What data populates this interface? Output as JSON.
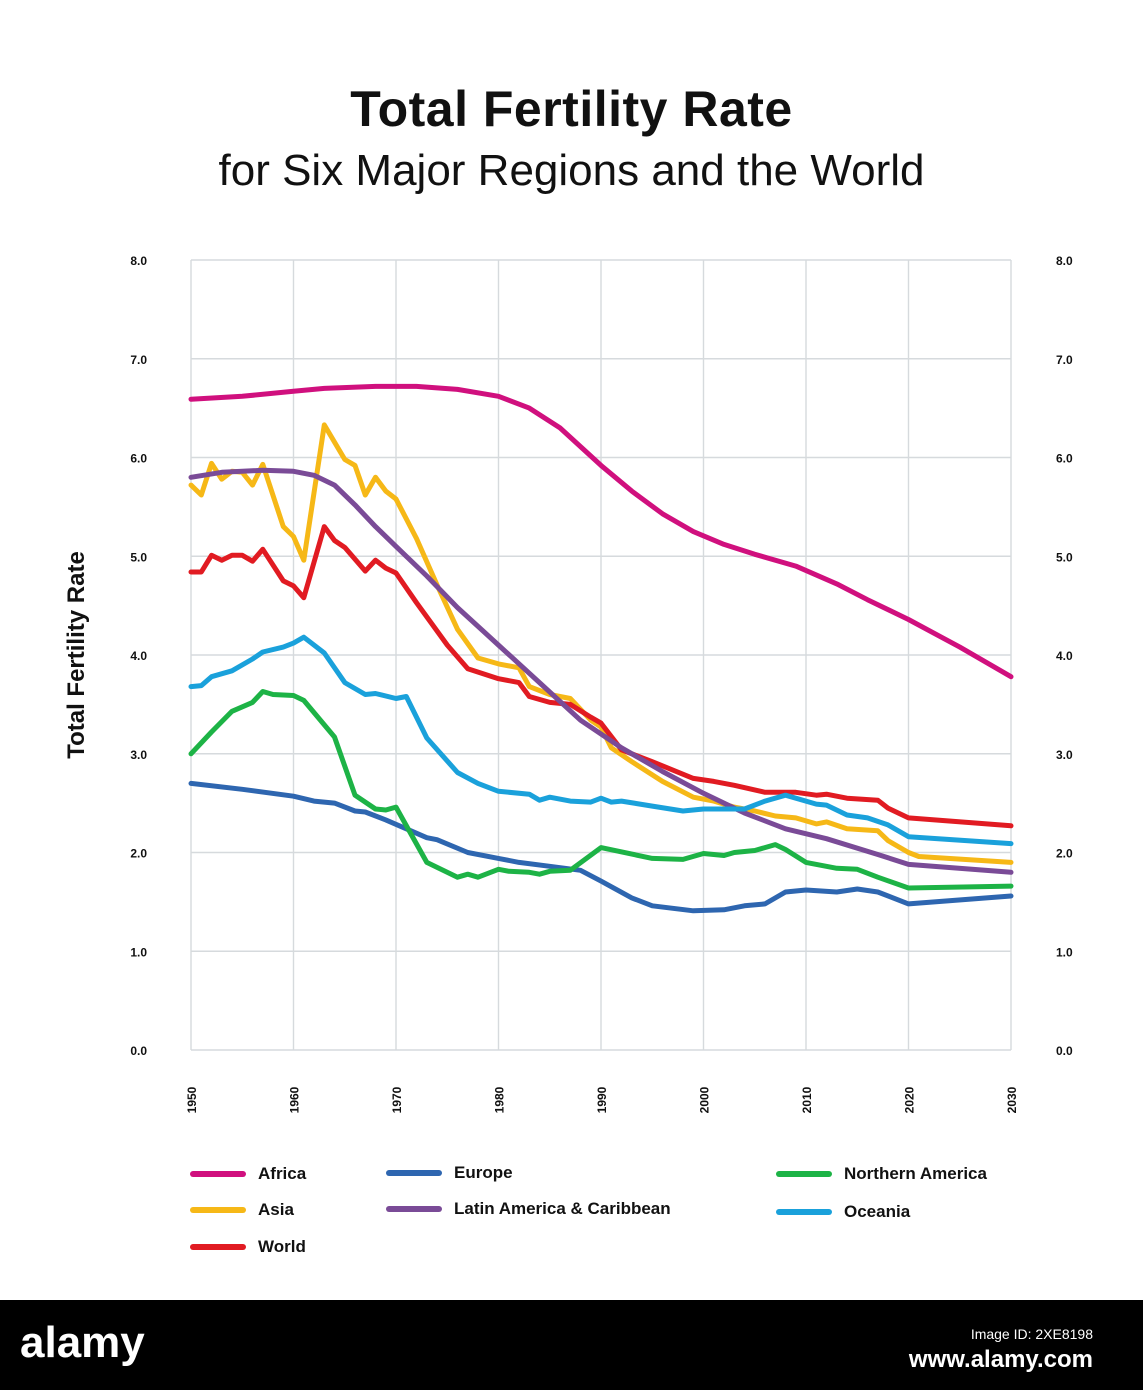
{
  "title": "Total Fertility Rate",
  "subtitle": "for Six Major Regions and the World",
  "chart_data": {
    "type": "line",
    "ylabel": "Total Fertility Rate",
    "xlabel": "",
    "xlim": [
      1950,
      2030
    ],
    "ylim": [
      0,
      8
    ],
    "xticks": [
      "1950",
      "1960",
      "1970",
      "1980",
      "1990",
      "2000",
      "2010",
      "2020",
      "2030"
    ],
    "yticks": [
      "0.0",
      "1.0",
      "2.0",
      "3.0",
      "4.0",
      "5.0",
      "6.0",
      "7.0",
      "8.0"
    ],
    "grid": true,
    "legend_position": "bottom",
    "series": [
      {
        "name": "Africa",
        "color": "#d0107e",
        "values": [
          [
            1950,
            6.59
          ],
          [
            1955,
            6.62
          ],
          [
            1960,
            6.67
          ],
          [
            1963,
            6.7
          ],
          [
            1968,
            6.72
          ],
          [
            1972,
            6.72
          ],
          [
            1976,
            6.69
          ],
          [
            1980,
            6.62
          ],
          [
            1983,
            6.5
          ],
          [
            1986,
            6.3
          ],
          [
            1990,
            5.92
          ],
          [
            1993,
            5.66
          ],
          [
            1996,
            5.43
          ],
          [
            1999,
            5.25
          ],
          [
            2002,
            5.12
          ],
          [
            2005,
            5.02
          ],
          [
            2009,
            4.9
          ],
          [
            2013,
            4.72
          ],
          [
            2016,
            4.56
          ],
          [
            2020,
            4.36
          ],
          [
            2025,
            4.08
          ],
          [
            2030,
            3.78
          ]
        ]
      },
      {
        "name": "Asia",
        "color": "#f6b817",
        "values": [
          [
            1950,
            5.72
          ],
          [
            1951,
            5.62
          ],
          [
            1952,
            5.94
          ],
          [
            1953,
            5.78
          ],
          [
            1954,
            5.86
          ],
          [
            1955,
            5.85
          ],
          [
            1956,
            5.72
          ],
          [
            1957,
            5.93
          ],
          [
            1959,
            5.3
          ],
          [
            1960,
            5.2
          ],
          [
            1961,
            4.96
          ],
          [
            1963,
            6.33
          ],
          [
            1965,
            5.98
          ],
          [
            1966,
            5.92
          ],
          [
            1967,
            5.62
          ],
          [
            1968,
            5.8
          ],
          [
            1969,
            5.66
          ],
          [
            1970,
            5.58
          ],
          [
            1972,
            5.18
          ],
          [
            1974,
            4.71
          ],
          [
            1976,
            4.26
          ],
          [
            1978,
            3.97
          ],
          [
            1980,
            3.91
          ],
          [
            1982,
            3.87
          ],
          [
            1983,
            3.68
          ],
          [
            1985,
            3.6
          ],
          [
            1987,
            3.56
          ],
          [
            1989,
            3.34
          ],
          [
            1990,
            3.27
          ],
          [
            1991,
            3.06
          ],
          [
            1993,
            2.92
          ],
          [
            1996,
            2.72
          ],
          [
            1999,
            2.56
          ],
          [
            2001,
            2.52
          ],
          [
            2003,
            2.46
          ],
          [
            2005,
            2.42
          ],
          [
            2007,
            2.37
          ],
          [
            2009,
            2.35
          ],
          [
            2011,
            2.29
          ],
          [
            2012,
            2.31
          ],
          [
            2014,
            2.24
          ],
          [
            2017,
            2.22
          ],
          [
            2018,
            2.12
          ],
          [
            2020,
            2.0
          ],
          [
            2021,
            1.96
          ],
          [
            2030,
            1.9
          ]
        ]
      },
      {
        "name": "World",
        "color": "#e11b22",
        "values": [
          [
            1950,
            4.84
          ],
          [
            1951,
            4.84
          ],
          [
            1952,
            5.01
          ],
          [
            1953,
            4.96
          ],
          [
            1954,
            5.01
          ],
          [
            1955,
            5.01
          ],
          [
            1956,
            4.95
          ],
          [
            1957,
            5.07
          ],
          [
            1959,
            4.75
          ],
          [
            1960,
            4.7
          ],
          [
            1961,
            4.58
          ],
          [
            1963,
            5.3
          ],
          [
            1964,
            5.16
          ],
          [
            1965,
            5.09
          ],
          [
            1967,
            4.85
          ],
          [
            1968,
            4.96
          ],
          [
            1969,
            4.88
          ],
          [
            1970,
            4.83
          ],
          [
            1972,
            4.53
          ],
          [
            1975,
            4.1
          ],
          [
            1977,
            3.86
          ],
          [
            1980,
            3.76
          ],
          [
            1982,
            3.72
          ],
          [
            1983,
            3.58
          ],
          [
            1985,
            3.52
          ],
          [
            1987,
            3.5
          ],
          [
            1989,
            3.37
          ],
          [
            1990,
            3.31
          ],
          [
            1992,
            3.04
          ],
          [
            1995,
            2.92
          ],
          [
            1999,
            2.75
          ],
          [
            2001,
            2.72
          ],
          [
            2003,
            2.68
          ],
          [
            2006,
            2.61
          ],
          [
            2009,
            2.61
          ],
          [
            2011,
            2.58
          ],
          [
            2012,
            2.59
          ],
          [
            2014,
            2.55
          ],
          [
            2017,
            2.53
          ],
          [
            2018,
            2.45
          ],
          [
            2020,
            2.35
          ],
          [
            2030,
            2.27
          ]
        ]
      },
      {
        "name": "Europe",
        "color": "#2e66b0",
        "values": [
          [
            1950,
            2.7
          ],
          [
            1955,
            2.64
          ],
          [
            1960,
            2.57
          ],
          [
            1962,
            2.52
          ],
          [
            1964,
            2.5
          ],
          [
            1966,
            2.42
          ],
          [
            1967,
            2.41
          ],
          [
            1969,
            2.33
          ],
          [
            1973,
            2.15
          ],
          [
            1974,
            2.13
          ],
          [
            1977,
            2.0
          ],
          [
            1980,
            1.94
          ],
          [
            1982,
            1.9
          ],
          [
            1985,
            1.86
          ],
          [
            1988,
            1.82
          ],
          [
            1990,
            1.71
          ],
          [
            1993,
            1.54
          ],
          [
            1995,
            1.46
          ],
          [
            1999,
            1.41
          ],
          [
            2002,
            1.42
          ],
          [
            2004,
            1.46
          ],
          [
            2006,
            1.48
          ],
          [
            2008,
            1.6
          ],
          [
            2010,
            1.62
          ],
          [
            2013,
            1.6
          ],
          [
            2015,
            1.63
          ],
          [
            2017,
            1.6
          ],
          [
            2020,
            1.48
          ],
          [
            2030,
            1.56
          ]
        ]
      },
      {
        "name": "Latin America & Caribbean",
        "color": "#7a4b97",
        "values": [
          [
            1950,
            5.8
          ],
          [
            1953,
            5.85
          ],
          [
            1957,
            5.87
          ],
          [
            1960,
            5.86
          ],
          [
            1962,
            5.82
          ],
          [
            1964,
            5.72
          ],
          [
            1966,
            5.52
          ],
          [
            1968,
            5.3
          ],
          [
            1970,
            5.1
          ],
          [
            1973,
            4.8
          ],
          [
            1976,
            4.48
          ],
          [
            1980,
            4.1
          ],
          [
            1984,
            3.72
          ],
          [
            1988,
            3.34
          ],
          [
            1992,
            3.06
          ],
          [
            1996,
            2.82
          ],
          [
            2000,
            2.6
          ],
          [
            2004,
            2.4
          ],
          [
            2008,
            2.24
          ],
          [
            2012,
            2.14
          ],
          [
            2017,
            1.98
          ],
          [
            2020,
            1.88
          ],
          [
            2030,
            1.8
          ]
        ]
      },
      {
        "name": "Northern America",
        "color": "#1db346",
        "values": [
          [
            1950,
            3.0
          ],
          [
            1952,
            3.22
          ],
          [
            1954,
            3.43
          ],
          [
            1956,
            3.52
          ],
          [
            1957,
            3.63
          ],
          [
            1958,
            3.6
          ],
          [
            1960,
            3.59
          ],
          [
            1961,
            3.54
          ],
          [
            1964,
            3.17
          ],
          [
            1966,
            2.58
          ],
          [
            1968,
            2.44
          ],
          [
            1969,
            2.43
          ],
          [
            1970,
            2.46
          ],
          [
            1973,
            1.9
          ],
          [
            1976,
            1.75
          ],
          [
            1977,
            1.78
          ],
          [
            1978,
            1.75
          ],
          [
            1980,
            1.83
          ],
          [
            1981,
            1.81
          ],
          [
            1983,
            1.8
          ],
          [
            1984,
            1.78
          ],
          [
            1985,
            1.81
          ],
          [
            1987,
            1.82
          ],
          [
            1990,
            2.05
          ],
          [
            1995,
            1.94
          ],
          [
            1998,
            1.93
          ],
          [
            2000,
            1.99
          ],
          [
            2002,
            1.97
          ],
          [
            2003,
            2.0
          ],
          [
            2005,
            2.02
          ],
          [
            2007,
            2.08
          ],
          [
            2008,
            2.03
          ],
          [
            2010,
            1.9
          ],
          [
            2013,
            1.84
          ],
          [
            2015,
            1.83
          ],
          [
            2017,
            1.75
          ],
          [
            2020,
            1.64
          ],
          [
            2030,
            1.66
          ]
        ]
      },
      {
        "name": "Oceania",
        "color": "#1aa1db",
        "values": [
          [
            1950,
            3.68
          ],
          [
            1951,
            3.69
          ],
          [
            1952,
            3.78
          ],
          [
            1954,
            3.84
          ],
          [
            1956,
            3.96
          ],
          [
            1957,
            4.03
          ],
          [
            1959,
            4.08
          ],
          [
            1960,
            4.12
          ],
          [
            1961,
            4.18
          ],
          [
            1963,
            4.02
          ],
          [
            1965,
            3.72
          ],
          [
            1967,
            3.6
          ],
          [
            1968,
            3.61
          ],
          [
            1970,
            3.56
          ],
          [
            1971,
            3.58
          ],
          [
            1973,
            3.16
          ],
          [
            1976,
            2.81
          ],
          [
            1978,
            2.7
          ],
          [
            1980,
            2.62
          ],
          [
            1983,
            2.59
          ],
          [
            1984,
            2.53
          ],
          [
            1985,
            2.56
          ],
          [
            1987,
            2.52
          ],
          [
            1989,
            2.51
          ],
          [
            1990,
            2.55
          ],
          [
            1991,
            2.51
          ],
          [
            1992,
            2.52
          ],
          [
            1995,
            2.47
          ],
          [
            1998,
            2.42
          ],
          [
            2000,
            2.44
          ],
          [
            2004,
            2.44
          ],
          [
            2006,
            2.52
          ],
          [
            2008,
            2.58
          ],
          [
            2011,
            2.49
          ],
          [
            2012,
            2.48
          ],
          [
            2014,
            2.38
          ],
          [
            2016,
            2.35
          ],
          [
            2018,
            2.28
          ],
          [
            2020,
            2.16
          ],
          [
            2030,
            2.09
          ]
        ]
      }
    ]
  },
  "footer": {
    "brand": "alamy",
    "image_id": "Image ID: 2XE8198",
    "url": "www.alamy.com"
  }
}
